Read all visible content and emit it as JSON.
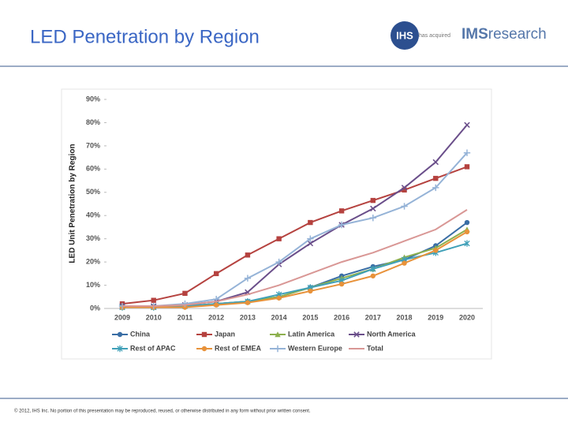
{
  "header": {
    "title": "LED Penetration by Region",
    "logo_ihs": "IHS",
    "logo_acquired": "has acquired",
    "logo_ims": "IMS",
    "logo_research": "research"
  },
  "footer": {
    "text": "© 2012, IHS Inc. No portion of this presentation may be reproduced, reused, or otherwise distributed in any form without prior written consent."
  },
  "chart_data": {
    "type": "line",
    "y_label": "LED Unit Penetration by Region",
    "categories": [
      "2009",
      "2010",
      "2011",
      "2012",
      "2013",
      "2014",
      "2015",
      "2016",
      "2017",
      "2018",
      "2019",
      "2020"
    ],
    "ylim": [
      0,
      90
    ],
    "yticks": [
      {
        "value": 0,
        "label": "0%"
      },
      {
        "value": 10,
        "label": "10%"
      },
      {
        "value": 20,
        "label": "20%"
      },
      {
        "value": 30,
        "label": "30%"
      },
      {
        "value": 40,
        "label": "40%"
      },
      {
        "value": 50,
        "label": "50%"
      },
      {
        "value": 60,
        "label": "60%"
      },
      {
        "value": 70,
        "label": "70%"
      },
      {
        "value": 80,
        "label": "80%"
      },
      {
        "value": 90,
        "label": "90%"
      }
    ],
    "grid": false,
    "legend": "bottom",
    "series": [
      {
        "name": "China",
        "color": "#3a6ea5",
        "marker": "circle",
        "values": [
          0.5,
          0.5,
          1,
          2,
          3,
          5,
          9,
          14,
          18,
          21,
          27,
          37
        ]
      },
      {
        "name": "Japan",
        "color": "#b5423f",
        "marker": "square",
        "values": [
          2,
          3.5,
          6.5,
          15,
          23,
          30,
          37,
          42,
          46.5,
          51,
          56,
          61
        ]
      },
      {
        "name": "Latin America",
        "color": "#8db04e",
        "marker": "triangle",
        "values": [
          0.5,
          0.5,
          1,
          2,
          3,
          5,
          9,
          13,
          17,
          22,
          26,
          34
        ]
      },
      {
        "name": "North America",
        "color": "#6a4e8a",
        "marker": "x",
        "values": [
          1,
          1,
          1.5,
          3,
          7,
          19,
          28,
          36,
          43,
          52,
          63,
          79
        ]
      },
      {
        "name": "Rest of APAC",
        "color": "#3fa0b8",
        "marker": "star",
        "values": [
          0.5,
          0.5,
          1,
          2,
          3,
          6,
          9,
          12,
          17,
          21,
          24,
          28
        ]
      },
      {
        "name": "Rest of EMEA",
        "color": "#e8923a",
        "marker": "circle",
        "values": [
          0.5,
          0.5,
          0.5,
          1.5,
          2.5,
          4.5,
          7.5,
          10.5,
          14,
          19.5,
          25,
          33
        ]
      },
      {
        "name": "Western Europe",
        "color": "#95b3d7",
        "marker": "plus",
        "values": [
          1,
          1,
          2,
          4,
          13,
          20,
          30,
          36,
          39,
          44,
          52,
          67
        ]
      },
      {
        "name": "Total",
        "color": "#d99795",
        "marker": "none",
        "values": [
          1,
          1,
          1.5,
          3,
          6,
          10,
          15,
          20,
          24,
          29,
          34,
          42.5
        ]
      }
    ]
  }
}
